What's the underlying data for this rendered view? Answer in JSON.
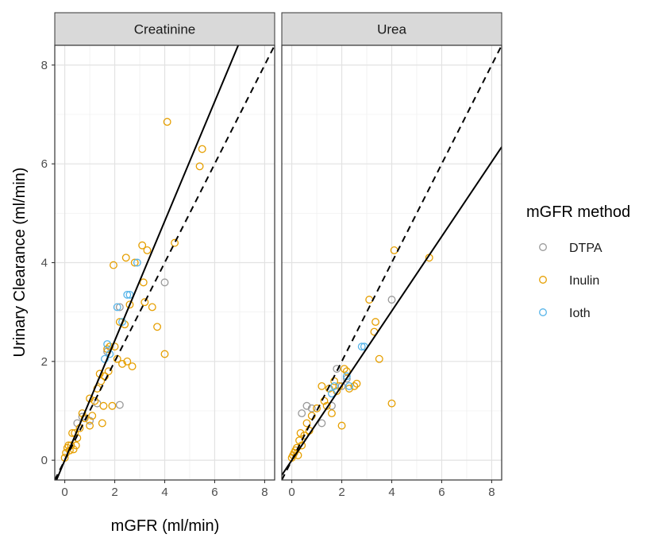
{
  "chart_data": {
    "type": "scatter",
    "xlabel": "mGFR (ml/min)",
    "ylabel": "Urinary Clearance (ml/min)",
    "xlim": [
      -0.4,
      8.4
    ],
    "ylim": [
      -0.4,
      8.4
    ],
    "x_ticks": [
      0,
      2,
      4,
      6,
      8
    ],
    "y_ticks": [
      0,
      2,
      4,
      6,
      8
    ],
    "x_tick_labels": [
      "0",
      "2",
      "4",
      "6",
      "8"
    ],
    "y_tick_labels": [
      "0",
      "2",
      "4",
      "6",
      "8"
    ],
    "grid": true,
    "legend": {
      "title": "mGFR method",
      "position": "right",
      "entries": [
        {
          "name": "DTPA",
          "color": "#999999"
        },
        {
          "name": "Inulin",
          "color": "#E69F00"
        },
        {
          "name": "Ioth",
          "color": "#56B4E9"
        }
      ]
    },
    "panels": [
      {
        "strip": "Creatinine",
        "lines": [
          {
            "style": "solid",
            "intercept": 0.0,
            "slope": 1.21
          },
          {
            "style": "dashed",
            "intercept": 0.0,
            "slope": 1.0
          }
        ],
        "series": [
          {
            "name": "DTPA",
            "points": [
              [
                0.5,
                0.75
              ],
              [
                1.0,
                0.8
              ],
              [
                1.3,
                1.15
              ],
              [
                1.7,
                2.2
              ],
              [
                2.2,
                1.12
              ],
              [
                2.2,
                3.1
              ],
              [
                4.0,
                3.6
              ],
              [
                0.7,
                0.88
              ]
            ]
          },
          {
            "name": "Inulin",
            "points": [
              [
                0.0,
                0.05
              ],
              [
                0.05,
                0.15
              ],
              [
                0.1,
                0.25
              ],
              [
                0.15,
                0.3
              ],
              [
                0.2,
                0.2
              ],
              [
                0.25,
                0.3
              ],
              [
                0.3,
                0.55
              ],
              [
                0.35,
                0.22
              ],
              [
                0.4,
                0.55
              ],
              [
                0.45,
                0.3
              ],
              [
                0.5,
                0.45
              ],
              [
                0.6,
                0.65
              ],
              [
                0.7,
                0.95
              ],
              [
                0.8,
                0.85
              ],
              [
                1.0,
                1.25
              ],
              [
                1.0,
                0.7
              ],
              [
                1.1,
                0.9
              ],
              [
                1.2,
                1.2
              ],
              [
                1.3,
                1.45
              ],
              [
                1.4,
                1.75
              ],
              [
                1.45,
                1.6
              ],
              [
                1.5,
                0.75
              ],
              [
                1.55,
                1.1
              ],
              [
                1.6,
                1.7
              ],
              [
                1.7,
                2.25
              ],
              [
                1.75,
                1.8
              ],
              [
                1.8,
                2.3
              ],
              [
                1.9,
                1.1
              ],
              [
                1.95,
                3.95
              ],
              [
                2.0,
                2.3
              ],
              [
                2.1,
                2.05
              ],
              [
                2.2,
                2.8
              ],
              [
                2.3,
                1.95
              ],
              [
                2.4,
                2.75
              ],
              [
                2.45,
                4.1
              ],
              [
                2.5,
                2.0
              ],
              [
                2.6,
                3.15
              ],
              [
                2.7,
                1.9
              ],
              [
                2.8,
                4.0
              ],
              [
                3.1,
                4.35
              ],
              [
                3.15,
                3.6
              ],
              [
                3.2,
                3.2
              ],
              [
                3.3,
                4.25
              ],
              [
                3.5,
                3.1
              ],
              [
                3.7,
                2.7
              ],
              [
                4.0,
                2.15
              ],
              [
                4.1,
                6.85
              ],
              [
                4.4,
                4.4
              ],
              [
                5.4,
                5.95
              ],
              [
                5.5,
                6.3
              ]
            ]
          },
          {
            "name": "Ioth",
            "points": [
              [
                1.6,
                2.05
              ],
              [
                1.7,
                2.35
              ],
              [
                1.8,
                2.15
              ],
              [
                2.1,
                3.1
              ],
              [
                2.3,
                2.8
              ],
              [
                2.5,
                3.35
              ],
              [
                2.6,
                3.35
              ],
              [
                2.9,
                4.0
              ]
            ]
          }
        ]
      },
      {
        "strip": "Urea",
        "lines": [
          {
            "style": "solid",
            "intercept": 0.0,
            "slope": 0.755
          },
          {
            "style": "dashed",
            "intercept": 0.0,
            "slope": 1.0
          }
        ],
        "series": [
          {
            "name": "DTPA",
            "points": [
              [
                0.4,
                0.95
              ],
              [
                0.6,
                1.1
              ],
              [
                0.8,
                1.05
              ],
              [
                1.2,
                0.75
              ],
              [
                1.6,
                1.1
              ],
              [
                1.8,
                1.85
              ],
              [
                2.0,
                1.5
              ],
              [
                2.2,
                1.65
              ],
              [
                4.0,
                3.25
              ]
            ]
          },
          {
            "name": "Inulin",
            "points": [
              [
                0.0,
                0.05
              ],
              [
                0.05,
                0.1
              ],
              [
                0.1,
                0.15
              ],
              [
                0.15,
                0.2
              ],
              [
                0.2,
                0.25
              ],
              [
                0.25,
                0.1
              ],
              [
                0.3,
                0.4
              ],
              [
                0.35,
                0.55
              ],
              [
                0.4,
                0.3
              ],
              [
                0.5,
                0.5
              ],
              [
                0.6,
                0.75
              ],
              [
                0.7,
                0.6
              ],
              [
                0.8,
                0.9
              ],
              [
                1.0,
                1.05
              ],
              [
                1.2,
                1.5
              ],
              [
                1.3,
                1.2
              ],
              [
                1.4,
                1.1
              ],
              [
                1.5,
                1.45
              ],
              [
                1.6,
                0.95
              ],
              [
                1.7,
                1.6
              ],
              [
                1.8,
                1.4
              ],
              [
                1.9,
                1.5
              ],
              [
                2.0,
                0.7
              ],
              [
                2.1,
                1.85
              ],
              [
                2.2,
                1.8
              ],
              [
                2.3,
                1.45
              ],
              [
                2.5,
                1.5
              ],
              [
                2.6,
                1.55
              ],
              [
                3.1,
                3.25
              ],
              [
                3.3,
                2.6
              ],
              [
                3.35,
                2.8
              ],
              [
                3.5,
                2.05
              ],
              [
                4.0,
                1.15
              ],
              [
                4.1,
                4.25
              ],
              [
                5.5,
                4.1
              ]
            ]
          },
          {
            "name": "Ioth",
            "points": [
              [
                1.6,
                1.35
              ],
              [
                1.7,
                1.5
              ],
              [
                2.2,
                1.7
              ],
              [
                2.3,
                1.5
              ],
              [
                2.8,
                2.3
              ],
              [
                2.9,
                2.3
              ]
            ]
          }
        ]
      }
    ]
  }
}
